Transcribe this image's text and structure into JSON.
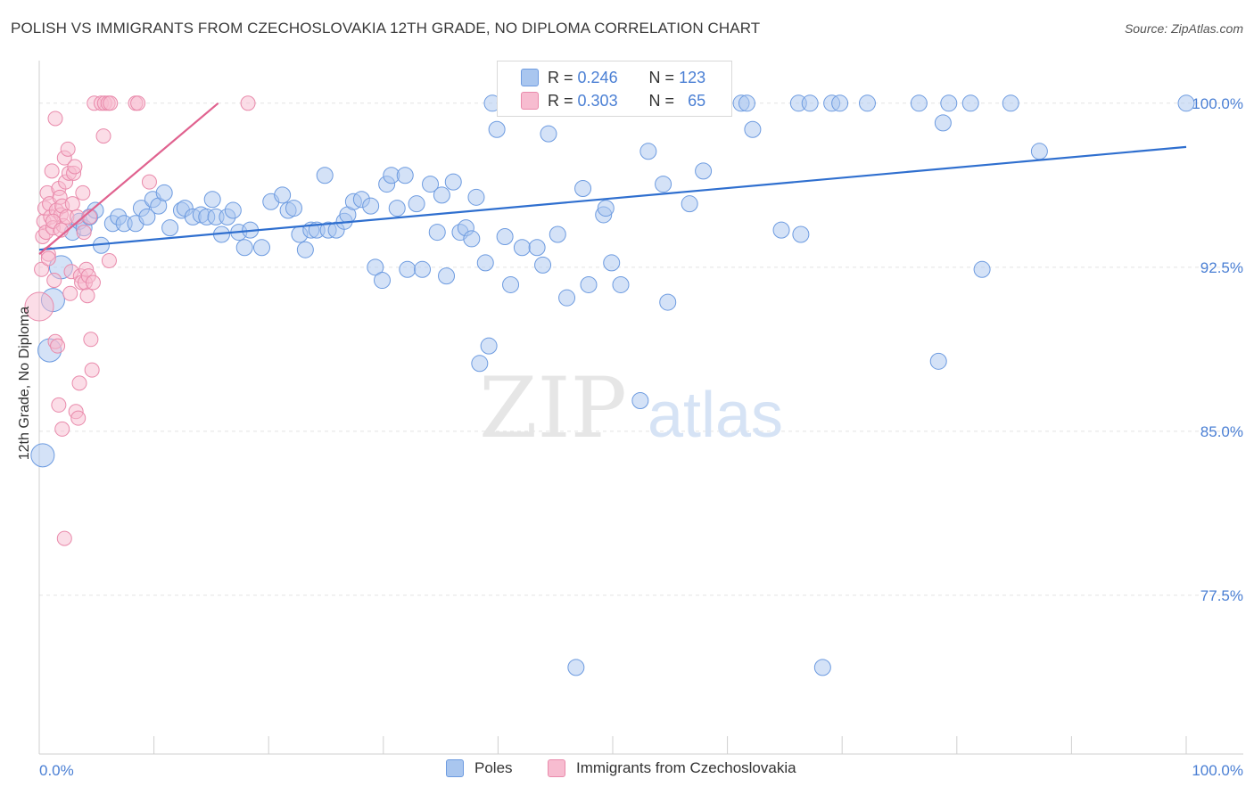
{
  "header": {
    "title": "POLISH VS IMMIGRANTS FROM CZECHOSLOVAKIA 12TH GRADE, NO DIPLOMA CORRELATION CHART",
    "source": "Source: ZipAtlas.com"
  },
  "watermark": {
    "zip": "ZIP",
    "atlas": "atlas"
  },
  "stats": {
    "r_label": "R =",
    "n_label": "N =",
    "series1": {
      "r": "0.246",
      "n": "123"
    },
    "series2": {
      "r": "0.303",
      "n": "65"
    }
  },
  "colors": {
    "blue_fill": "#a9c6ef",
    "blue_stroke": "#6d9be0",
    "blue_line": "#2f6fcf",
    "pink_fill": "#f7bcd0",
    "pink_stroke": "#e98aab",
    "pink_line": "#e0628f",
    "tick_text": "#4a7fd4",
    "grid": "#e3e3e3"
  },
  "chart_data": {
    "type": "scatter",
    "title": "POLISH VS IMMIGRANTS FROM CZECHOSLOVAKIA 12TH GRADE, NO DIPLOMA CORRELATION CHART",
    "xlabel": "",
    "ylabel": "12th Grade, No Diploma",
    "xlim": [
      0,
      100
    ],
    "ylim": [
      70.2,
      101.5
    ],
    "x_tick_labels": [
      "0.0%",
      "100.0%"
    ],
    "y_ticks": [
      100.0,
      92.5,
      85.0,
      77.5
    ],
    "y_tick_labels": [
      "100.0%",
      "92.5%",
      "85.0%",
      "77.5%"
    ],
    "grid": true,
    "legend_position": "bottom",
    "series": [
      {
        "name": "Poles",
        "trendline": {
          "x": [
            0,
            100
          ],
          "y": [
            93.3,
            98.0
          ]
        },
        "points": [
          [
            0.3,
            83.9
          ],
          [
            0.9,
            88.7
          ],
          [
            1.2,
            91.0
          ],
          [
            1.9,
            92.5
          ],
          [
            2.9,
            94.1
          ],
          [
            3.5,
            94.6
          ],
          [
            3.9,
            94.3
          ],
          [
            4.4,
            94.8
          ],
          [
            4.9,
            95.1
          ],
          [
            5.4,
            93.5
          ],
          [
            6.4,
            94.5
          ],
          [
            6.9,
            94.8
          ],
          [
            7.4,
            94.5
          ],
          [
            8.4,
            94.5
          ],
          [
            8.9,
            95.2
          ],
          [
            9.4,
            94.8
          ],
          [
            9.9,
            95.6
          ],
          [
            10.4,
            95.3
          ],
          [
            10.9,
            95.9
          ],
          [
            11.4,
            94.3
          ],
          [
            12.4,
            95.1
          ],
          [
            12.7,
            95.2
          ],
          [
            13.4,
            94.8
          ],
          [
            14.1,
            94.9
          ],
          [
            14.6,
            94.8
          ],
          [
            15.1,
            95.6
          ],
          [
            15.4,
            94.8
          ],
          [
            15.9,
            94.0
          ],
          [
            16.4,
            94.8
          ],
          [
            16.9,
            95.1
          ],
          [
            17.4,
            94.1
          ],
          [
            17.9,
            93.4
          ],
          [
            18.4,
            94.2
          ],
          [
            19.4,
            93.4
          ],
          [
            20.2,
            95.5
          ],
          [
            21.2,
            95.8
          ],
          [
            21.7,
            95.1
          ],
          [
            22.2,
            95.2
          ],
          [
            22.7,
            94.0
          ],
          [
            23.2,
            93.3
          ],
          [
            23.7,
            94.2
          ],
          [
            24.2,
            94.2
          ],
          [
            24.9,
            96.7
          ],
          [
            25.2,
            94.2
          ],
          [
            25.9,
            94.2
          ],
          [
            26.6,
            94.6
          ],
          [
            26.9,
            94.9
          ],
          [
            27.4,
            95.5
          ],
          [
            28.1,
            95.6
          ],
          [
            28.9,
            95.3
          ],
          [
            29.3,
            92.5
          ],
          [
            29.9,
            91.9
          ],
          [
            30.3,
            96.3
          ],
          [
            30.7,
            96.7
          ],
          [
            31.2,
            95.2
          ],
          [
            31.9,
            96.7
          ],
          [
            32.1,
            92.4
          ],
          [
            32.9,
            95.4
          ],
          [
            33.4,
            92.4
          ],
          [
            34.1,
            96.3
          ],
          [
            34.7,
            94.1
          ],
          [
            35.1,
            95.8
          ],
          [
            35.5,
            92.1
          ],
          [
            36.1,
            96.4
          ],
          [
            36.7,
            94.1
          ],
          [
            37.2,
            94.3
          ],
          [
            37.7,
            93.8
          ],
          [
            38.1,
            95.7
          ],
          [
            38.4,
            88.1
          ],
          [
            38.9,
            92.7
          ],
          [
            39.2,
            88.9
          ],
          [
            39.5,
            100.0
          ],
          [
            39.9,
            98.8
          ],
          [
            40.6,
            93.9
          ],
          [
            41.1,
            91.7
          ],
          [
            41.6,
            100.0
          ],
          [
            42.1,
            93.4
          ],
          [
            42.9,
            100.0
          ],
          [
            43.4,
            93.4
          ],
          [
            43.9,
            92.6
          ],
          [
            44.4,
            98.6
          ],
          [
            45.2,
            94.0
          ],
          [
            46.0,
            91.1
          ],
          [
            46.8,
            74.2
          ],
          [
            47.4,
            96.1
          ],
          [
            47.9,
            91.7
          ],
          [
            48.4,
            100.0
          ],
          [
            49.2,
            94.9
          ],
          [
            49.4,
            95.2
          ],
          [
            49.9,
            92.7
          ],
          [
            50.7,
            91.7
          ],
          [
            52.1,
            100.0
          ],
          [
            52.4,
            86.4
          ],
          [
            52.7,
            100.0
          ],
          [
            53.1,
            97.8
          ],
          [
            54.4,
            96.3
          ],
          [
            54.8,
            90.9
          ],
          [
            56.7,
            95.4
          ],
          [
            56.8,
            100.0
          ],
          [
            57.2,
            100.0
          ],
          [
            57.9,
            96.9
          ],
          [
            58.6,
            100.0
          ],
          [
            59.2,
            100.0
          ],
          [
            61.2,
            100.0
          ],
          [
            61.7,
            100.0
          ],
          [
            62.2,
            98.8
          ],
          [
            64.7,
            94.2
          ],
          [
            66.2,
            100.0
          ],
          [
            66.4,
            94.0
          ],
          [
            67.2,
            100.0
          ],
          [
            68.3,
            74.2
          ],
          [
            69.1,
            100.0
          ],
          [
            69.8,
            100.0
          ],
          [
            72.2,
            100.0
          ],
          [
            76.7,
            100.0
          ],
          [
            78.4,
            88.2
          ],
          [
            78.8,
            99.1
          ],
          [
            79.3,
            100.0
          ],
          [
            81.2,
            100.0
          ],
          [
            82.2,
            92.4
          ],
          [
            84.7,
            100.0
          ],
          [
            87.2,
            97.8
          ],
          [
            100.0,
            100.0
          ]
        ]
      },
      {
        "name": "Immigrants from Czechoslovakia",
        "trendline": {
          "x": [
            0,
            15.6
          ],
          "y": [
            93.1,
            100.0
          ]
        },
        "points": [
          [
            0.0,
            90.7
          ],
          [
            0.2,
            92.4
          ],
          [
            0.3,
            93.9
          ],
          [
            0.4,
            94.6
          ],
          [
            0.5,
            95.2
          ],
          [
            0.6,
            94.1
          ],
          [
            0.7,
            95.9
          ],
          [
            0.8,
            93.1
          ],
          [
            0.9,
            95.4
          ],
          [
            1.0,
            94.8
          ],
          [
            1.1,
            96.9
          ],
          [
            1.2,
            94.3
          ],
          [
            1.3,
            91.9
          ],
          [
            1.4,
            89.1
          ],
          [
            1.5,
            95.1
          ],
          [
            1.6,
            88.9
          ],
          [
            1.7,
            96.1
          ],
          [
            1.8,
            95.7
          ],
          [
            1.9,
            94.9
          ],
          [
            2.0,
            95.3
          ],
          [
            2.1,
            94.4
          ],
          [
            2.2,
            97.5
          ],
          [
            2.3,
            96.4
          ],
          [
            2.4,
            94.8
          ],
          [
            2.5,
            97.9
          ],
          [
            2.6,
            96.8
          ],
          [
            2.7,
            91.3
          ],
          [
            2.8,
            92.3
          ],
          [
            2.9,
            95.4
          ],
          [
            3.0,
            96.8
          ],
          [
            3.1,
            97.1
          ],
          [
            3.2,
            85.9
          ],
          [
            3.3,
            94.8
          ],
          [
            3.4,
            85.6
          ],
          [
            3.5,
            87.2
          ],
          [
            3.6,
            92.1
          ],
          [
            3.7,
            91.8
          ],
          [
            3.8,
            95.9
          ],
          [
            3.9,
            94.1
          ],
          [
            4.0,
            91.8
          ],
          [
            4.1,
            92.4
          ],
          [
            4.2,
            91.2
          ],
          [
            4.3,
            92.1
          ],
          [
            4.4,
            94.8
          ],
          [
            4.5,
            89.2
          ],
          [
            4.6,
            87.8
          ],
          [
            4.7,
            91.8
          ],
          [
            4.8,
            100.0
          ],
          [
            5.4,
            100.0
          ],
          [
            5.7,
            100.0
          ],
          [
            6.0,
            100.0
          ],
          [
            6.2,
            100.0
          ],
          [
            5.6,
            98.5
          ],
          [
            6.1,
            92.8
          ],
          [
            8.4,
            100.0
          ],
          [
            8.6,
            100.0
          ],
          [
            9.6,
            96.4
          ],
          [
            18.2,
            100.0
          ],
          [
            1.4,
            99.3
          ],
          [
            1.7,
            86.2
          ],
          [
            2.0,
            85.1
          ],
          [
            2.2,
            80.1
          ],
          [
            1.2,
            94.6
          ],
          [
            0.8,
            92.9
          ],
          [
            1.9,
            94.2
          ]
        ]
      }
    ]
  },
  "legend": {
    "items": [
      "Poles",
      "Immigrants from Czechoslovakia"
    ]
  }
}
